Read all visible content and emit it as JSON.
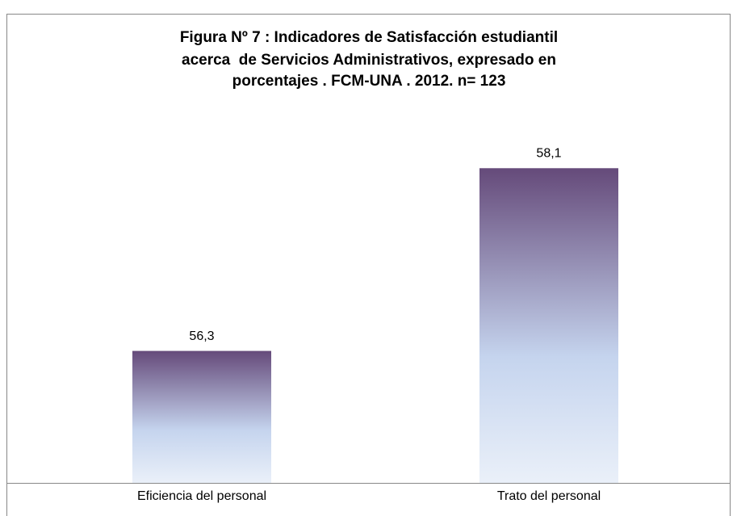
{
  "chart_data": {
    "type": "bar",
    "title": [
      "Figura Nº 7 : Indicadores de Satisfacción estudiantil",
      "acerca  de Servicios Administrativos, expresado en",
      "porcentajes . FCM-UNA . 2012. n= 123"
    ],
    "categories": [
      "Eficiencia del personal",
      "Trato del personal"
    ],
    "values": [
      56.3,
      58.1
    ],
    "value_labels": [
      "56,3",
      "58,1"
    ],
    "ylim": [
      55,
      58.5
    ],
    "color": [
      "#654a7a",
      "#c5d4ee",
      "#eaf0f9"
    ]
  }
}
